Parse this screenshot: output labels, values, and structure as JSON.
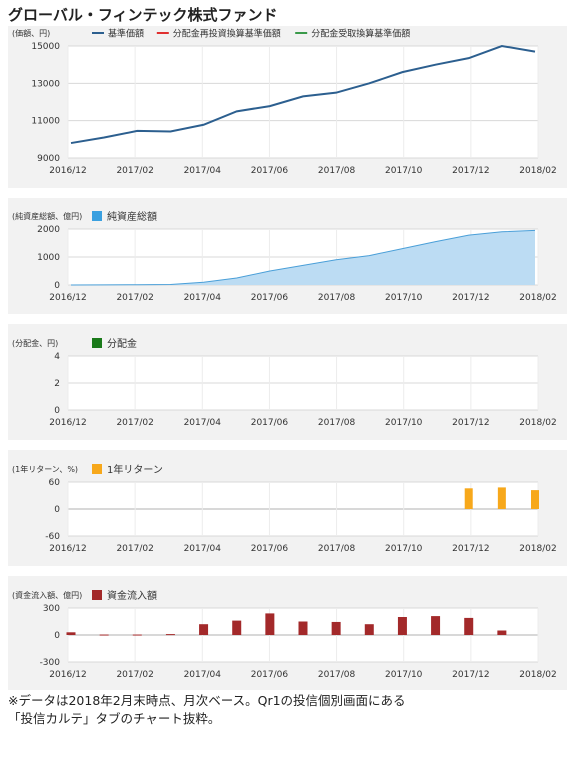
{
  "page": {
    "title": "グローバル・フィンテック株式ファンド",
    "note_line1": "※データは2018年2月末時点、月次ベース。Qr1の投信個別画面にある",
    "note_line2": "「投信カルテ」タブのチャート抜粋。"
  },
  "x_ticks": [
    "2016/12",
    "2017/02",
    "2017/04",
    "2017/06",
    "2017/08",
    "2017/10",
    "2017/12",
    "2018/02"
  ],
  "colors": {
    "panel_bg": "#f2f2f2",
    "plot_bg": "#ffffff",
    "grid": "#d8d8d8",
    "nav_line": "#2c5f8f",
    "reinvest_line": "#e03030",
    "receive_line": "#3a9a4a",
    "assets_fill": "#bcdcf3",
    "assets_line": "#4a9fd8",
    "assets_legend": "#3aa0e0",
    "dividend": "#1a7a1a",
    "return_bar": "#f7a81b",
    "flow_bar": "#a3292a"
  },
  "chart_data": [
    {
      "type": "line",
      "ylabel": "(価額、円)",
      "ylim": [
        9000,
        15000
      ],
      "yticks": [
        9000,
        11000,
        13000,
        15000
      ],
      "legend": [
        "基準価額",
        "分配金再投資換算基準価額",
        "分配金受取換算基準価額"
      ],
      "x": [
        0,
        1,
        2,
        3,
        4,
        5,
        6,
        7,
        8,
        9,
        10,
        11,
        12,
        13,
        14
      ],
      "series": [
        {
          "name": "基準価額",
          "values": [
            9800,
            10100,
            10450,
            10420,
            10780,
            11500,
            11780,
            12300,
            12500,
            13000,
            13600,
            14000,
            14350,
            15000,
            14700
          ]
        }
      ],
      "grid": true
    },
    {
      "type": "area",
      "ylabel": "(純資産総額、億円)",
      "ylim": [
        0,
        2000
      ],
      "yticks": [
        0,
        1000,
        2000
      ],
      "legend": [
        "純資産総額"
      ],
      "x": [
        0,
        1,
        2,
        3,
        4,
        5,
        6,
        7,
        8,
        9,
        10,
        11,
        12,
        13,
        14
      ],
      "series": [
        {
          "name": "純資産総額",
          "values": [
            2,
            4,
            8,
            20,
            100,
            250,
            500,
            700,
            900,
            1050,
            1300,
            1550,
            1780,
            1900,
            1950
          ]
        }
      ],
      "grid": true
    },
    {
      "type": "bar",
      "ylabel": "(分配金、円)",
      "ylim": [
        0,
        4
      ],
      "yticks": [
        0,
        2,
        4
      ],
      "legend": [
        "分配金"
      ],
      "x": [],
      "series": [
        {
          "name": "分配金",
          "values": []
        }
      ],
      "grid": true
    },
    {
      "type": "bar",
      "ylabel": "(1年リターン、%)",
      "ylim": [
        -60,
        60
      ],
      "yticks": [
        -60,
        0,
        60
      ],
      "legend": [
        "1年リターン"
      ],
      "x": [
        12,
        13,
        14
      ],
      "series": [
        {
          "name": "1年リターン",
          "values": [
            46,
            48,
            42
          ]
        }
      ],
      "grid": true
    },
    {
      "type": "bar",
      "ylabel": "(資金流入額、億円)",
      "ylim": [
        -300,
        300
      ],
      "yticks": [
        -300,
        0,
        300
      ],
      "legend": [
        "資金流入額"
      ],
      "x": [
        0,
        1,
        2,
        3,
        4,
        5,
        6,
        7,
        8,
        9,
        10,
        11,
        12,
        13
      ],
      "series": [
        {
          "name": "資金流入額",
          "values": [
            30,
            5,
            5,
            10,
            120,
            160,
            240,
            150,
            145,
            120,
            200,
            210,
            190,
            50
          ]
        }
      ],
      "grid": true
    }
  ]
}
